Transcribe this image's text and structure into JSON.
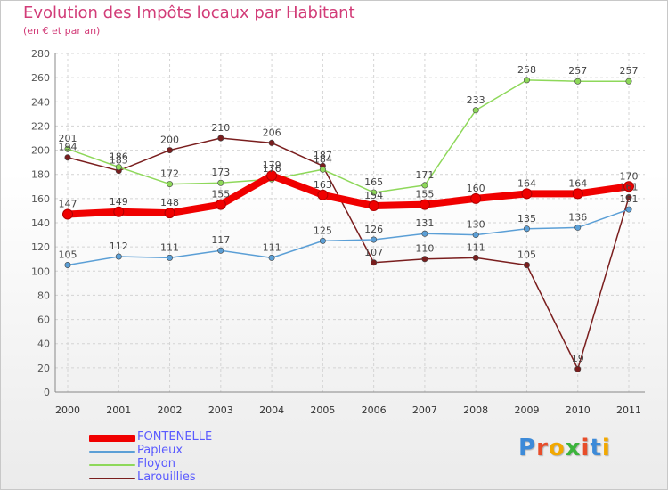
{
  "header": {
    "title": "Evolution des Impôts locaux par Habitant",
    "subtitle": "(en € et par an)"
  },
  "logo": {
    "text": "Proxiti",
    "letter_colors": [
      "#3c8ad8",
      "#e84d2a",
      "#f2a800",
      "#3cb43c",
      "#e84d2a",
      "#3c8ad8",
      "#f2a800"
    ]
  },
  "chart_data": {
    "type": "line",
    "x": [
      "2000",
      "2001",
      "2002",
      "2003",
      "2004",
      "2005",
      "2006",
      "2007",
      "2008",
      "2009",
      "2010",
      "2011"
    ],
    "ylim": [
      0,
      280
    ],
    "yticks": [
      "0",
      "20",
      "40",
      "60",
      "80",
      "100",
      "120",
      "140",
      "160",
      "180",
      "200",
      "220",
      "240",
      "260",
      "280"
    ],
    "grid": true,
    "legend_position": "bottom-left",
    "series": [
      {
        "name": "Larouillies",
        "color": "#7a1e1e",
        "values": [
          194,
          183,
          200,
          210,
          206,
          187,
          107,
          110,
          111,
          105,
          19,
          161
        ],
        "labels": [
          "194",
          "183",
          "200",
          "210",
          "206",
          "187",
          "107",
          "110",
          "111",
          "105",
          "19",
          "161"
        ]
      },
      {
        "name": "Floyon",
        "color": "#8ed85a",
        "values": [
          201,
          186,
          172,
          173,
          176,
          184,
          165,
          171,
          233,
          258,
          257,
          257
        ],
        "labels": [
          "201",
          "186",
          "172",
          "173",
          "176",
          "184",
          "165",
          "171",
          "233",
          "258",
          "257",
          "257"
        ]
      },
      {
        "name": "Papleux",
        "color": "#5b9fd6",
        "values": [
          105,
          112,
          111,
          117,
          111,
          125,
          126,
          131,
          130,
          135,
          136,
          151
        ],
        "labels": [
          "105",
          "112",
          "111",
          "117",
          "111",
          "125",
          "126",
          "131",
          "130",
          "135",
          "136",
          "151"
        ]
      },
      {
        "name": "FONTENELLE",
        "color": "#f00000",
        "values": [
          147,
          149,
          148,
          155,
          179,
          163,
          154,
          155,
          160,
          164,
          164,
          170
        ],
        "labels": [
          "147",
          "149",
          "148",
          "155",
          "179",
          "163",
          "154",
          "155",
          "160",
          "164",
          "164",
          "170"
        ]
      }
    ]
  },
  "legend": {
    "items": [
      {
        "label": "FONTENELLE",
        "color": "#f00000"
      },
      {
        "label": "Papleux",
        "color": "#5b9fd6"
      },
      {
        "label": "Floyon",
        "color": "#8ed85a"
      },
      {
        "label": "Larouillies",
        "color": "#7a1e1e"
      }
    ]
  }
}
